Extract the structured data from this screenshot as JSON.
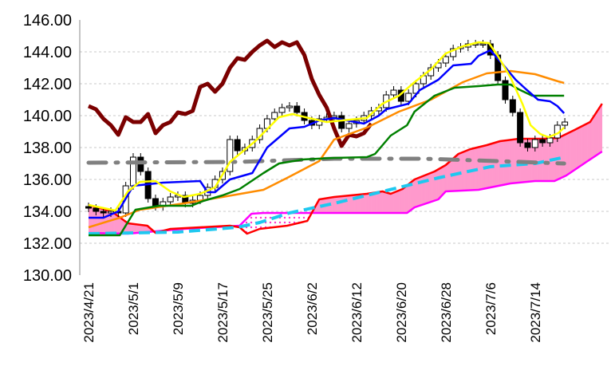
{
  "chart_data": {
    "type": "line",
    "title": "",
    "xlabel": "",
    "ylabel": "",
    "ylim": [
      130,
      146
    ],
    "y_ticks": [
      "146.00",
      "144.00",
      "142.00",
      "140.00",
      "138.00",
      "136.00",
      "134.00",
      "132.00",
      "130.00"
    ],
    "y_tick_values": [
      146,
      144,
      142,
      140,
      138,
      136,
      134,
      132,
      130
    ],
    "x_tick_labels": [
      "2023/4/21",
      "2023/5/1",
      "2023/5/9",
      "2023/5/17",
      "2023/5/25",
      "2023/6/2",
      "2023/6/12",
      "2023/6/20",
      "2023/6/28",
      "2023/7/6",
      "2023/7/14"
    ],
    "x_tick_indices": [
      0,
      6,
      12,
      18,
      24,
      30,
      36,
      42,
      48,
      54,
      60
    ],
    "x_range_trading_days": [
      -1,
      69.5
    ],
    "grid": true,
    "legend": "none",
    "candles_close": [
      134.2,
      134.0,
      133.9,
      134.0,
      133.9,
      135.6,
      137.4,
      136.5,
      134.8,
      134.3,
      134.6,
      134.9,
      135.0,
      134.5,
      134.7,
      135.0,
      135.5,
      136.0,
      136.5,
      138.5,
      137.8,
      138.0,
      138.5,
      139.2,
      139.8,
      140.2,
      140.5,
      140.6,
      140.2,
      139.7,
      139.4,
      139.8,
      139.9,
      140.0,
      139.2,
      139.5,
      139.7,
      140.0,
      140.3,
      140.5,
      141.3,
      141.6,
      140.9,
      141.4,
      142.0,
      142.5,
      143.0,
      143.3,
      143.7,
      144.2,
      144.3,
      144.5,
      144.5,
      144.5,
      143.8,
      142.2,
      141.0,
      140.2,
      138.3,
      138.0,
      138.5,
      138.3,
      138.6,
      139.4,
      139.6
    ],
    "candles_first_open": 134.3,
    "series": [
      {
        "name": "lagging-span",
        "color": "#7b0000",
        "points": [
          [
            0,
            140.6
          ],
          [
            1,
            140.4
          ],
          [
            2,
            139.8
          ],
          [
            3,
            139.4
          ],
          [
            4,
            138.8
          ],
          [
            5,
            139.9
          ],
          [
            6,
            139.6
          ],
          [
            7,
            139.6
          ],
          [
            8,
            140.1
          ],
          [
            9,
            138.9
          ],
          [
            10,
            139.4
          ],
          [
            11,
            139.6
          ],
          [
            12,
            140.2
          ],
          [
            13,
            140.1
          ],
          [
            14,
            140.3
          ],
          [
            15,
            141.8
          ],
          [
            16,
            142.0
          ],
          [
            17,
            141.5
          ],
          [
            18,
            142.0
          ],
          [
            19,
            143.0
          ],
          [
            20,
            143.6
          ],
          [
            21,
            143.5
          ],
          [
            22,
            144.0
          ],
          [
            23,
            144.4
          ],
          [
            24,
            144.7
          ],
          [
            25,
            144.3
          ],
          [
            26,
            144.6
          ],
          [
            27,
            144.4
          ],
          [
            28,
            144.6
          ],
          [
            29,
            143.8
          ],
          [
            30,
            142.3
          ],
          [
            31,
            141.3
          ],
          [
            32,
            140.5
          ],
          [
            33,
            139.2
          ],
          [
            34,
            138.1
          ],
          [
            35,
            138.8
          ],
          [
            36,
            138.7
          ],
          [
            37,
            138.9
          ],
          [
            38,
            139.5
          ]
        ]
      },
      {
        "name": "senkou-span-a",
        "color": "#ff0000",
        "points": [
          [
            0,
            134.4
          ],
          [
            3.1,
            134.0
          ],
          [
            5.3,
            133.25
          ],
          [
            7.9,
            133.1
          ],
          [
            9,
            132.65
          ],
          [
            11,
            132.9
          ],
          [
            15,
            133.0
          ],
          [
            19,
            133.1
          ],
          [
            20.3,
            133.0
          ],
          [
            21.3,
            132.6
          ],
          [
            23,
            132.9
          ],
          [
            26.7,
            133.1
          ],
          [
            29.4,
            133.4
          ],
          [
            31,
            134.75
          ],
          [
            33,
            134.9
          ],
          [
            37.4,
            135.1
          ],
          [
            39.5,
            135.25
          ],
          [
            40.6,
            135.1
          ],
          [
            42.2,
            135.4
          ],
          [
            43.8,
            136.0
          ],
          [
            46.5,
            136.5
          ],
          [
            48,
            136.9
          ],
          [
            49.7,
            137.6
          ],
          [
            51.3,
            137.9
          ],
          [
            53.5,
            138.15
          ],
          [
            55.3,
            138.4
          ],
          [
            57.8,
            138.55
          ],
          [
            61,
            138.55
          ],
          [
            63.1,
            138.6
          ],
          [
            65.3,
            139.1
          ],
          [
            67.4,
            139.6
          ],
          [
            69,
            140.75
          ]
        ]
      },
      {
        "name": "senkou-span-b",
        "color": "#ff00ff",
        "points": [
          [
            0,
            132.65
          ],
          [
            5.3,
            132.6
          ],
          [
            12.8,
            132.9
          ],
          [
            20.3,
            133.1
          ],
          [
            21.9,
            133.85
          ],
          [
            23.5,
            133.9
          ],
          [
            42.8,
            133.9
          ],
          [
            43.8,
            134.25
          ],
          [
            47,
            134.75
          ],
          [
            48,
            135.25
          ],
          [
            52.4,
            135.35
          ],
          [
            56.7,
            135.75
          ],
          [
            60,
            135.9
          ],
          [
            62.6,
            135.9
          ],
          [
            64.2,
            136.25
          ],
          [
            66.9,
            137.1
          ],
          [
            69,
            137.75
          ]
        ]
      },
      {
        "name": "moving-average-long",
        "color": "#808080",
        "points": [
          [
            0,
            137.05
          ],
          [
            20,
            137.1
          ],
          [
            33,
            137.3
          ],
          [
            45,
            137.3
          ],
          [
            55,
            137.15
          ],
          [
            63.9,
            137.0
          ]
        ]
      },
      {
        "name": "moving-average-mid",
        "color": "#1ec8f0",
        "points": [
          [
            0,
            132.6
          ],
          [
            12,
            132.7
          ],
          [
            20,
            133.0
          ],
          [
            23,
            133.3
          ],
          [
            27,
            133.9
          ],
          [
            33,
            134.5
          ],
          [
            40,
            135.3
          ],
          [
            47,
            136.1
          ],
          [
            54,
            136.8
          ],
          [
            60,
            137.0
          ],
          [
            64,
            137.4
          ]
        ]
      },
      {
        "name": "moving-average-25",
        "color": "#ff8c00",
        "points": [
          [
            0,
            133.0
          ],
          [
            4.2,
            133.6
          ],
          [
            6.9,
            134.1
          ],
          [
            12.8,
            134.5
          ],
          [
            18,
            134.9
          ],
          [
            23.5,
            135.35
          ],
          [
            26.7,
            136.1
          ],
          [
            31,
            137.15
          ],
          [
            33,
            138.5
          ],
          [
            37.4,
            139.25
          ],
          [
            41.7,
            140.25
          ],
          [
            46,
            141.0
          ],
          [
            50.3,
            142.1
          ],
          [
            53.5,
            142.65
          ],
          [
            56.7,
            142.8
          ],
          [
            60,
            142.6
          ],
          [
            63.1,
            142.15
          ],
          [
            63.9,
            142.05
          ]
        ]
      },
      {
        "name": "kijun-sen",
        "color": "#008000",
        "points": [
          [
            0,
            132.5
          ],
          [
            4.2,
            132.5
          ],
          [
            6.3,
            134.1
          ],
          [
            9.5,
            134.35
          ],
          [
            13.8,
            134.35
          ],
          [
            15.4,
            134.65
          ],
          [
            18,
            135.0
          ],
          [
            20.3,
            135.4
          ],
          [
            23.5,
            136.4
          ],
          [
            25.6,
            137.0
          ],
          [
            28.8,
            137.25
          ],
          [
            33,
            137.35
          ],
          [
            37.4,
            137.4
          ],
          [
            38.5,
            137.6
          ],
          [
            40.6,
            138.75
          ],
          [
            42.8,
            139.4
          ],
          [
            43.8,
            140.25
          ],
          [
            46.5,
            141.25
          ],
          [
            49.2,
            141.75
          ],
          [
            52.4,
            141.85
          ],
          [
            55,
            141.95
          ],
          [
            56.7,
            141.95
          ],
          [
            57.8,
            141.65
          ],
          [
            59.6,
            141.25
          ],
          [
            63.9,
            141.25
          ]
        ]
      },
      {
        "name": "tenkan-sen",
        "color": "#0000ff",
        "points": [
          [
            0,
            133.6
          ],
          [
            2,
            133.6
          ],
          [
            3,
            133.8
          ],
          [
            4,
            134.0
          ],
          [
            6,
            135.6
          ],
          [
            10,
            135.8
          ],
          [
            15,
            135.9
          ],
          [
            16,
            135.2
          ],
          [
            17,
            135.2
          ],
          [
            19,
            136.0
          ],
          [
            22,
            136.4
          ],
          [
            24,
            138.0
          ],
          [
            27,
            139.2
          ],
          [
            29,
            139.3
          ],
          [
            31,
            139.7
          ],
          [
            33,
            139.85
          ],
          [
            37,
            139.5
          ],
          [
            39,
            140.0
          ],
          [
            40,
            140.4
          ],
          [
            43,
            140.75
          ],
          [
            44.5,
            141.6
          ],
          [
            47,
            142.25
          ],
          [
            49,
            143.15
          ],
          [
            51.4,
            143.25
          ],
          [
            52.4,
            143.75
          ],
          [
            54,
            144.1
          ],
          [
            55.6,
            143.25
          ],
          [
            57.4,
            142.25
          ],
          [
            58.8,
            141.65
          ],
          [
            60.4,
            141.0
          ],
          [
            62,
            140.9
          ],
          [
            63,
            140.6
          ],
          [
            63.9,
            140.15
          ]
        ]
      },
      {
        "name": "moving-average-5",
        "color": "#ffff00",
        "points": [
          [
            0,
            134.4
          ],
          [
            3.6,
            134.05
          ],
          [
            5.3,
            135.25
          ],
          [
            6.9,
            135.85
          ],
          [
            9,
            135.9
          ],
          [
            11,
            135.25
          ],
          [
            12.8,
            134.9
          ],
          [
            15,
            135.1
          ],
          [
            17,
            135.5
          ],
          [
            19,
            137.1
          ],
          [
            22.4,
            138.4
          ],
          [
            25.6,
            139.9
          ],
          [
            27.4,
            140.1
          ],
          [
            29.6,
            139.85
          ],
          [
            32,
            139.6
          ],
          [
            33,
            139.65
          ],
          [
            37.4,
            139.85
          ],
          [
            39.5,
            140.75
          ],
          [
            41.7,
            141.25
          ],
          [
            43.8,
            142.1
          ],
          [
            46,
            142.9
          ],
          [
            48,
            143.9
          ],
          [
            50.3,
            144.35
          ],
          [
            52.4,
            144.6
          ],
          [
            53.8,
            144.55
          ],
          [
            55,
            143.75
          ],
          [
            56.7,
            142.4
          ],
          [
            58.3,
            140.75
          ],
          [
            59.4,
            139.4
          ],
          [
            60.7,
            138.85
          ],
          [
            61.8,
            138.65
          ],
          [
            63.1,
            138.9
          ],
          [
            63.9,
            139.25
          ]
        ]
      }
    ],
    "cloud_colors": {
      "bullish": "#ff99cc",
      "bearish_dots": "#ff33cc"
    }
  }
}
